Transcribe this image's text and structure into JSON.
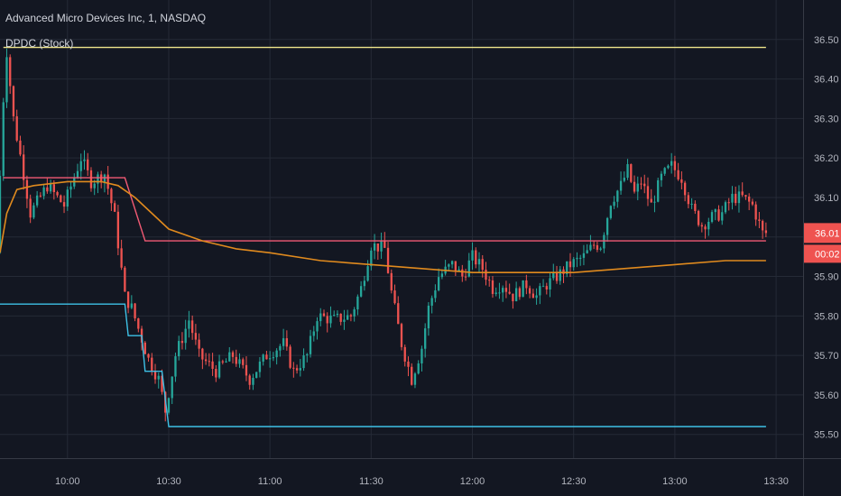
{
  "header": {
    "symbol_title": "Advanced Micro Devices Inc, 1, NASDAQ",
    "indicator_label": "DPDC (Stock)"
  },
  "colors": {
    "background": "#131722",
    "grid": "#252a36",
    "axis_text": "#b2b5be",
    "up": "#26a69a",
    "down": "#ef5350",
    "upper_band": "#f0e68c",
    "lower_band": "#3ec1e6",
    "mid_band": "#f25a74",
    "vwap": "#e08a1e",
    "price_tag": "#ef5350"
  },
  "price_badge": {
    "price": "36.01",
    "countdown": "00:02"
  },
  "chart_data": {
    "type": "candlestick",
    "x_unit": "time",
    "x_ticks": [
      "10:00",
      "10:30",
      "11:00",
      "11:30",
      "12:00",
      "12:30",
      "13:00",
      "13:30"
    ],
    "y_ticks": [
      "35.50",
      "35.60",
      "35.70",
      "35.80",
      "35.90",
      "36.00",
      "36.10",
      "36.20",
      "36.30",
      "36.40",
      "36.50"
    ],
    "y_range": [
      35.44,
      36.6
    ],
    "x_range": [
      "09:40",
      "13:38"
    ],
    "last_price": 36.01,
    "upper_band": {
      "level": 36.48,
      "start": "09:41",
      "end": "13:27"
    },
    "lower_band": [
      [
        "09:30",
        35.83
      ],
      [
        "10:17",
        35.83
      ],
      [
        "10:18",
        35.75
      ],
      [
        "10:22",
        35.75
      ],
      [
        "10:23",
        35.66
      ],
      [
        "10:28",
        35.66
      ],
      [
        "10:29",
        35.59
      ],
      [
        "10:30",
        35.52
      ],
      [
        "13:27",
        35.52
      ]
    ],
    "mid_band": [
      [
        "09:41",
        36.15
      ],
      [
        "10:17",
        36.15
      ],
      [
        "10:23",
        35.99
      ],
      [
        "13:27",
        35.99
      ]
    ],
    "vwap": [
      [
        "09:40",
        35.96
      ],
      [
        "09:42",
        36.06
      ],
      [
        "09:45",
        36.12
      ],
      [
        "09:50",
        36.13
      ],
      [
        "10:00",
        36.14
      ],
      [
        "10:10",
        36.14
      ],
      [
        "10:15",
        36.13
      ],
      [
        "10:20",
        36.1
      ],
      [
        "10:25",
        36.06
      ],
      [
        "10:30",
        36.02
      ],
      [
        "10:40",
        35.99
      ],
      [
        "10:50",
        35.97
      ],
      [
        "11:00",
        35.96
      ],
      [
        "11:15",
        35.94
      ],
      [
        "11:30",
        35.93
      ],
      [
        "11:45",
        35.92
      ],
      [
        "12:00",
        35.91
      ],
      [
        "12:15",
        35.91
      ],
      [
        "12:30",
        35.91
      ],
      [
        "12:45",
        35.92
      ],
      [
        "13:00",
        35.93
      ],
      [
        "13:15",
        35.94
      ],
      [
        "13:27",
        35.94
      ]
    ],
    "price_path": [
      [
        "09:40",
        35.96
      ],
      [
        "09:42",
        36.35
      ],
      [
        "09:43",
        36.47
      ],
      [
        "09:45",
        36.3
      ],
      [
        "09:48",
        36.16
      ],
      [
        "09:50",
        36.06
      ],
      [
        "09:55",
        36.13
      ],
      [
        "10:00",
        36.08
      ],
      [
        "10:05",
        36.2
      ],
      [
        "10:08",
        36.14
      ],
      [
        "10:12",
        36.16
      ],
      [
        "10:15",
        36.05
      ],
      [
        "10:18",
        35.85
      ],
      [
        "10:20",
        35.82
      ],
      [
        "10:25",
        35.69
      ],
      [
        "10:28",
        35.64
      ],
      [
        "10:30",
        35.56
      ],
      [
        "10:33",
        35.7
      ],
      [
        "10:37",
        35.79
      ],
      [
        "10:40",
        35.7
      ],
      [
        "10:45",
        35.66
      ],
      [
        "10:50",
        35.7
      ],
      [
        "10:55",
        35.64
      ],
      [
        "11:00",
        35.7
      ],
      [
        "11:05",
        35.73
      ],
      [
        "11:08",
        35.66
      ],
      [
        "11:12",
        35.7
      ],
      [
        "11:15",
        35.8
      ],
      [
        "11:20",
        35.79
      ],
      [
        "11:25",
        35.8
      ],
      [
        "11:28",
        35.87
      ],
      [
        "11:31",
        35.98
      ],
      [
        "11:35",
        35.97
      ],
      [
        "11:37",
        35.86
      ],
      [
        "11:40",
        35.73
      ],
      [
        "11:43",
        35.64
      ],
      [
        "11:46",
        35.72
      ],
      [
        "11:48",
        35.82
      ],
      [
        "11:51",
        35.9
      ],
      [
        "11:55",
        35.93
      ],
      [
        "11:58",
        35.9
      ],
      [
        "12:01",
        35.95
      ],
      [
        "12:04",
        35.92
      ],
      [
        "12:07",
        35.87
      ],
      [
        "12:10",
        35.88
      ],
      [
        "12:13",
        35.85
      ],
      [
        "12:17",
        35.88
      ],
      [
        "12:20",
        35.85
      ],
      [
        "12:23",
        35.88
      ],
      [
        "12:26",
        35.9
      ],
      [
        "12:30",
        35.93
      ],
      [
        "12:34",
        35.95
      ],
      [
        "12:37",
        35.98
      ],
      [
        "12:39",
        35.98
      ],
      [
        "12:42",
        36.09
      ],
      [
        "12:45",
        36.13
      ],
      [
        "12:47",
        36.17
      ],
      [
        "12:49",
        36.11
      ],
      [
        "12:51",
        36.14
      ],
      [
        "12:54",
        36.08
      ],
      [
        "12:57",
        36.15
      ],
      [
        "13:00",
        36.18
      ],
      [
        "13:03",
        36.15
      ],
      [
        "13:06",
        36.07
      ],
      [
        "13:09",
        36.03
      ],
      [
        "13:12",
        36.05
      ],
      [
        "13:15",
        36.06
      ],
      [
        "13:18",
        36.1
      ],
      [
        "13:21",
        36.1
      ],
      [
        "13:24",
        36.08
      ],
      [
        "13:27",
        36.01
      ]
    ]
  }
}
